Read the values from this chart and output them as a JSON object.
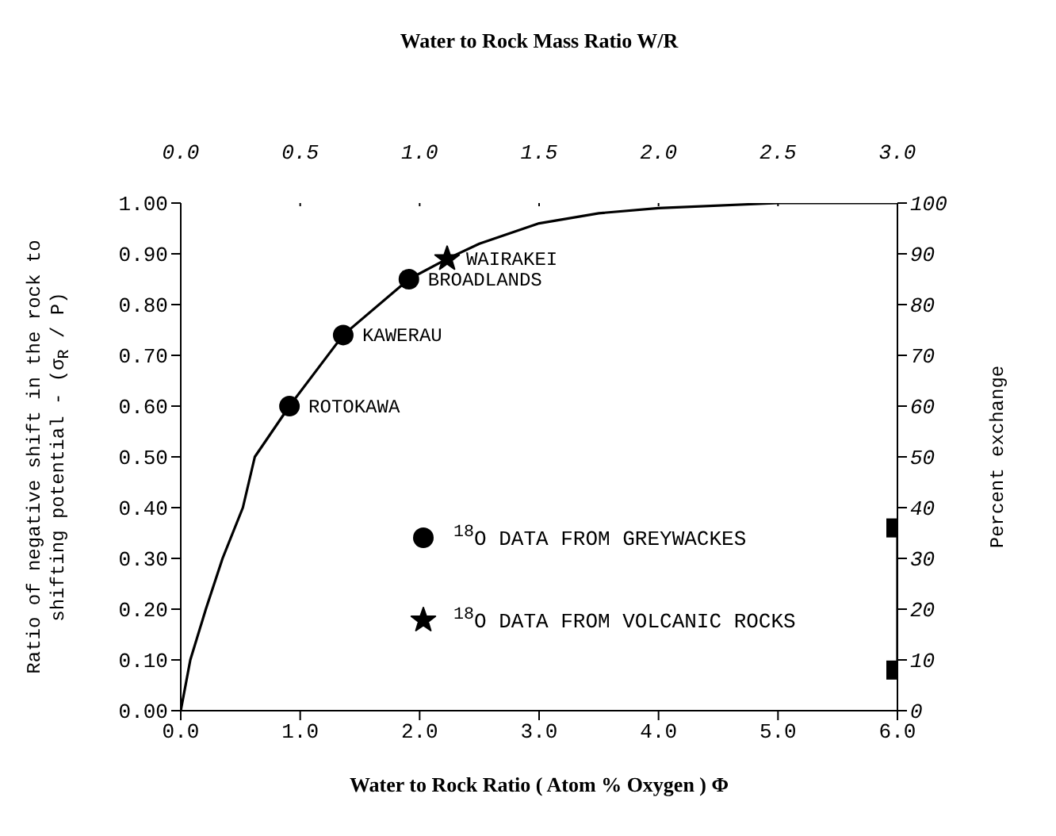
{
  "chart_data": {
    "type": "line",
    "x2label": "Water to Rock Mass Ratio W/R",
    "xlabel": "Water to Rock Ratio ( Atom % Oxygen ) Φ",
    "ylabel": "Ratio of negative shift in the rock to shifting potential - (σ$_{R}$ / P)",
    "y2label": "Percent exchange",
    "xlim": [
      0,
      6
    ],
    "xticks": [
      {
        "value": 0,
        "label": "0.0"
      },
      {
        "value": 1,
        "label": "1.0"
      },
      {
        "value": 2,
        "label": "2.0"
      },
      {
        "value": 3,
        "label": "3.0"
      },
      {
        "value": 4,
        "label": "4.0"
      },
      {
        "value": 5,
        "label": "5.0"
      },
      {
        "value": 6,
        "label": "6.0"
      }
    ],
    "x2lim": [
      0,
      3
    ],
    "x2ticks": [
      {
        "value": 0,
        "label": "0.0"
      },
      0.5,
      {
        "value": 1,
        "label": "1.0"
      },
      1.5,
      {
        "value": 2,
        "label": "2.0"
      },
      2.5,
      {
        "value": 3,
        "label": "3.0"
      }
    ],
    "ylim": [
      0,
      1
    ],
    "yticks": [
      {
        "value": 0,
        "label": "0.00"
      },
      {
        "value": 0.1,
        "label": "0.10"
      },
      {
        "value": 0.2,
        "label": "0.20"
      },
      {
        "value": 0.3,
        "label": "0.30"
      },
      {
        "value": 0.4,
        "label": "0.40"
      },
      {
        "value": 0.5,
        "label": "0.50"
      },
      {
        "value": 0.6,
        "label": "0.60"
      },
      {
        "value": 0.7,
        "label": "0.70"
      },
      {
        "value": 0.8,
        "label": "0.80"
      },
      {
        "value": 0.9,
        "label": "0.90"
      },
      {
        "value": 1,
        "label": "1.00"
      }
    ],
    "y2lim": [
      0,
      100
    ],
    "y2ticks": [
      0,
      10,
      20,
      30,
      40,
      50,
      60,
      70,
      80,
      90,
      100
    ],
    "grid": false,
    "legend": "bottom",
    "series": [
      {
        "color": "#000000",
        "marker": "none",
        "line_style": "solid",
        "x": [
          0,
          0.08,
          0.21,
          0.35,
          0.52,
          0.62,
          0.91,
          1.36,
          1.91,
          2.23,
          2.5,
          3.0,
          3.5,
          4.0,
          5.0,
          6.0
        ],
        "values": [
          0,
          0.1,
          0.2,
          0.3,
          0.4,
          0.5,
          0.6,
          0.74,
          0.85,
          0.89,
          0.92,
          0.96,
          0.98,
          0.99,
          1.0,
          1.0
        ]
      },
      {
        "type": "scatter",
        "name": "$^{18}$O DATA FROM GREYWACKES",
        "color": "#000000",
        "marker": "circle",
        "x": [
          0.91,
          1.36,
          1.91
        ],
        "values": [
          0.6,
          0.74,
          0.85
        ]
      },
      {
        "type": "scatter",
        "name": "$^{18}$O DATA FROM VOLCANIC ROCKS",
        "color": "#000000",
        "marker": "star",
        "x": [
          2.23
        ],
        "values": [
          0.89
        ]
      },
      {
        "axis": "y2",
        "color": "#000000",
        "marker": "square",
        "line_style": "solid",
        "x": [
          6,
          6
        ],
        "values": [
          36,
          8
        ]
      }
    ],
    "annotations": [
      {
        "text": "ROTOKAWA",
        "x": 0.91,
        "y": 0.6
      },
      {
        "text": "KAWERAU",
        "x": 1.36,
        "y": 0.74
      },
      {
        "text": "BROADLANDS",
        "x": 1.91,
        "y": 0.85
      },
      {
        "text": "WAIRAKEI",
        "x": 2.23,
        "y": 0.89
      }
    ]
  }
}
